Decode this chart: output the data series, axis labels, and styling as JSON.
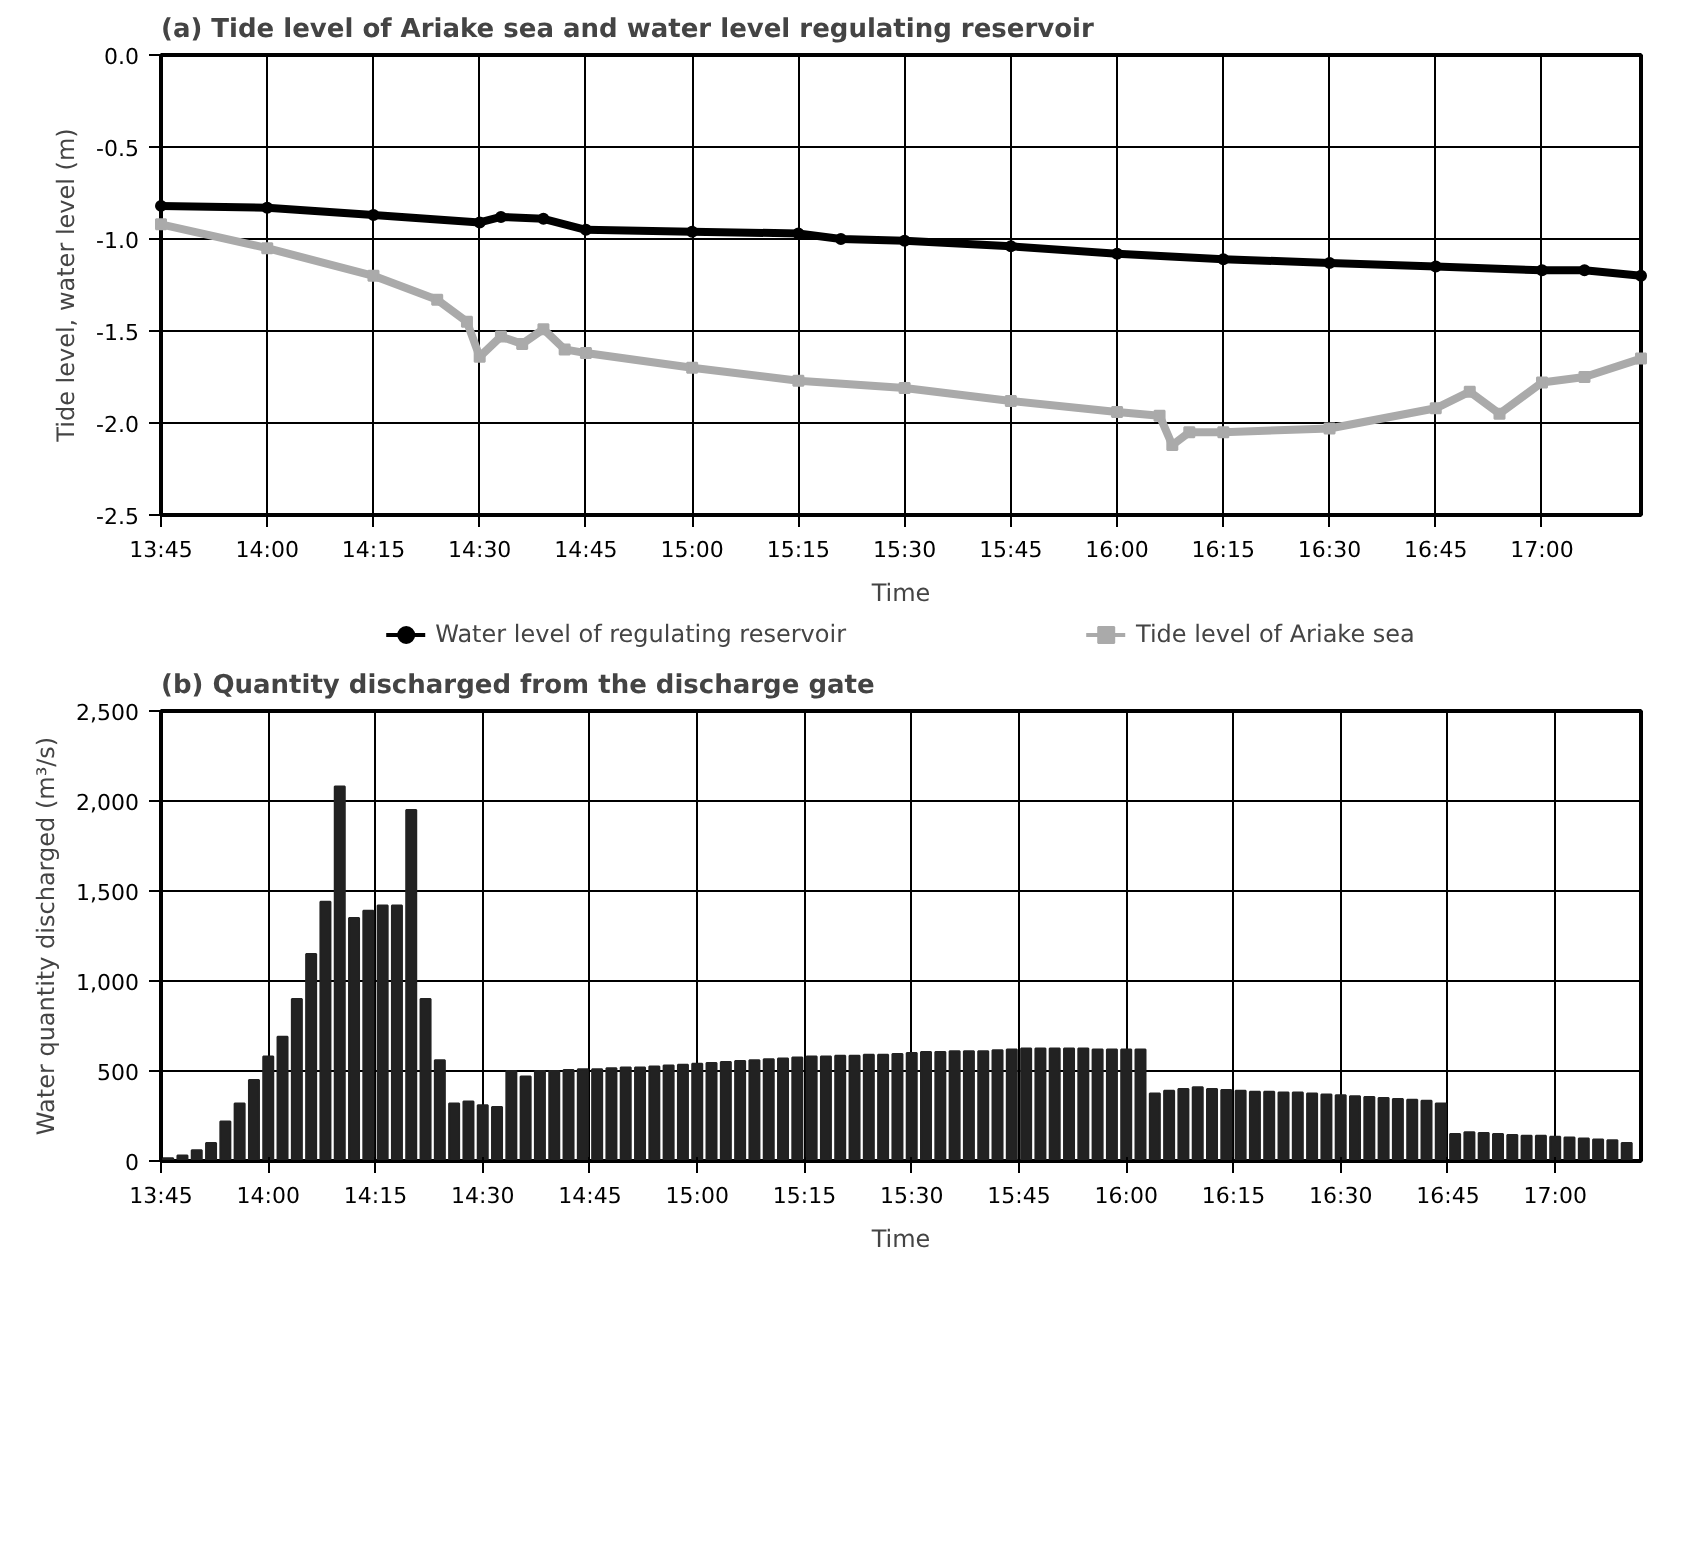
{
  "chart_data": [
    {
      "type": "line",
      "title": "(a) Tide level of Ariake sea and water level regulating reservoir",
      "xlabel": "Time",
      "ylabel": "Tide level, water level (m)",
      "xlim": [
        13.75,
        17.233
      ],
      "ylim": [
        -2.5,
        0.0
      ],
      "xticks": [
        {
          "value": 13.75,
          "label": "13:45"
        },
        {
          "value": 14.0,
          "label": "14:00"
        },
        {
          "value": 14.25,
          "label": "14:15"
        },
        {
          "value": 14.5,
          "label": "14:30"
        },
        {
          "value": 14.75,
          "label": "14:45"
        },
        {
          "value": 15.0,
          "label": "15:00"
        },
        {
          "value": 15.25,
          "label": "15:15"
        },
        {
          "value": 15.5,
          "label": "15:30"
        },
        {
          "value": 15.75,
          "label": "15:45"
        },
        {
          "value": 16.0,
          "label": "16:00"
        },
        {
          "value": 16.25,
          "label": "16:15"
        },
        {
          "value": 16.5,
          "label": "16:30"
        },
        {
          "value": 16.75,
          "label": "16:45"
        },
        {
          "value": 17.0,
          "label": "17:00"
        }
      ],
      "yticks": [
        {
          "value": 0.0,
          "label": "0.0"
        },
        {
          "value": -0.5,
          "label": "-0.5"
        },
        {
          "value": -1.0,
          "label": "-1.0"
        },
        {
          "value": -1.5,
          "label": "-1.5"
        },
        {
          "value": -2.0,
          "label": "-2.0"
        },
        {
          "value": -2.5,
          "label": "-2.5"
        }
      ],
      "grid": true,
      "legend": "bottom",
      "line_style": "solid",
      "series": [
        {
          "name": "Water level of regulating reservoir",
          "color": "#000000",
          "marker": "circle",
          "x": [
            13.75,
            14.0,
            14.25,
            14.5,
            14.55,
            14.65,
            14.75,
            15.0,
            15.25,
            15.35,
            15.5,
            15.75,
            16.0,
            16.25,
            16.5,
            16.75,
            17.0,
            17.1,
            17.233
          ],
          "values": [
            -0.82,
            -0.83,
            -0.87,
            -0.91,
            -0.88,
            -0.89,
            -0.95,
            -0.96,
            -0.97,
            -1.0,
            -1.01,
            -1.04,
            -1.08,
            -1.11,
            -1.13,
            -1.15,
            -1.17,
            -1.17,
            -1.2
          ]
        },
        {
          "name": "Tide level of Ariake sea",
          "color": "#aaaaaa",
          "marker": "square",
          "x": [
            13.75,
            14.0,
            14.25,
            14.4,
            14.47,
            14.5,
            14.55,
            14.6,
            14.65,
            14.7,
            14.75,
            15.0,
            15.25,
            15.5,
            15.75,
            16.0,
            16.1,
            16.13,
            16.17,
            16.25,
            16.5,
            16.75,
            16.83,
            16.9,
            17.0,
            17.1,
            17.233
          ],
          "values": [
            -0.92,
            -1.05,
            -1.2,
            -1.33,
            -1.45,
            -1.64,
            -1.53,
            -1.57,
            -1.49,
            -1.6,
            -1.62,
            -1.7,
            -1.77,
            -1.81,
            -1.88,
            -1.94,
            -1.96,
            -2.12,
            -2.05,
            -2.05,
            -2.03,
            -1.92,
            -1.83,
            -1.95,
            -1.78,
            -1.75,
            -1.65
          ]
        }
      ]
    },
    {
      "type": "bar",
      "title": "(b) Quantity discharged from the discharge gate",
      "xlabel": "Time",
      "ylabel": "Water quantity discharged (m³/s)",
      "xlim": [
        13.75,
        17.2
      ],
      "ylim": [
        0,
        2500
      ],
      "xticks": [
        {
          "value": 13.75,
          "label": "13:45"
        },
        {
          "value": 14.0,
          "label": "14:00"
        },
        {
          "value": 14.25,
          "label": "14:15"
        },
        {
          "value": 14.5,
          "label": "14:30"
        },
        {
          "value": 14.75,
          "label": "14:45"
        },
        {
          "value": 15.0,
          "label": "15:00"
        },
        {
          "value": 15.25,
          "label": "15:15"
        },
        {
          "value": 15.5,
          "label": "15:30"
        },
        {
          "value": 15.75,
          "label": "15:45"
        },
        {
          "value": 16.0,
          "label": "16:00"
        },
        {
          "value": 16.25,
          "label": "16:15"
        },
        {
          "value": 16.5,
          "label": "16:30"
        },
        {
          "value": 16.75,
          "label": "16:45"
        },
        {
          "value": 17.0,
          "label": "17:00"
        }
      ],
      "yticks": [
        0,
        500,
        {
          "value": 1000,
          "label": "1,000"
        },
        {
          "value": 1500,
          "label": "1,500"
        },
        {
          "value": 2000,
          "label": "2,000"
        },
        {
          "value": 2500,
          "label": "2,500"
        }
      ],
      "grid": true,
      "color": "#222222",
      "x": [
        13.7667,
        13.8,
        13.8333,
        13.8667,
        13.9,
        13.9333,
        13.9667,
        14.0,
        14.0333,
        14.0667,
        14.1,
        14.1333,
        14.1667,
        14.2,
        14.2333,
        14.2667,
        14.3,
        14.3333,
        14.3667,
        14.4,
        14.4333,
        14.4667,
        14.5,
        14.5333,
        14.5667,
        14.6,
        14.6333,
        14.6667,
        14.7,
        14.7333,
        14.7667,
        14.8,
        14.8333,
        14.8667,
        14.9,
        14.9333,
        14.9667,
        15.0,
        15.0333,
        15.0667,
        15.1,
        15.1333,
        15.1667,
        15.2,
        15.2333,
        15.2667,
        15.3,
        15.3333,
        15.3667,
        15.4,
        15.4333,
        15.4667,
        15.5,
        15.5333,
        15.5667,
        15.6,
        15.6333,
        15.6667,
        15.7,
        15.7333,
        15.7667,
        15.8,
        15.8333,
        15.8667,
        15.9,
        15.9333,
        15.9667,
        16.0,
        16.0333,
        16.0667,
        16.1,
        16.1333,
        16.1667,
        16.2,
        16.2333,
        16.2667,
        16.3,
        16.3333,
        16.3667,
        16.4,
        16.4333,
        16.4667,
        16.5,
        16.5333,
        16.5667,
        16.6,
        16.6333,
        16.6667,
        16.7,
        16.7333,
        16.7667,
        16.8,
        16.8333,
        16.8667,
        16.9,
        16.9333,
        16.9667,
        17.0,
        17.0333,
        17.0667,
        17.1,
        17.1333,
        17.1667
      ],
      "values": [
        15,
        30,
        60,
        100,
        220,
        320,
        450,
        580,
        690,
        900,
        1150,
        1440,
        2080,
        1350,
        1390,
        1420,
        1420,
        1950,
        900,
        560,
        320,
        330,
        310,
        300,
        500,
        470,
        500,
        500,
        505,
        510,
        510,
        515,
        520,
        520,
        525,
        530,
        535,
        540,
        545,
        550,
        555,
        560,
        565,
        570,
        575,
        580,
        580,
        585,
        585,
        590,
        590,
        595,
        600,
        605,
        605,
        610,
        610,
        610,
        615,
        620,
        625,
        625,
        625,
        625,
        625,
        620,
        620,
        620,
        620,
        375,
        390,
        400,
        410,
        400,
        395,
        390,
        385,
        385,
        380,
        380,
        375,
        370,
        365,
        360,
        355,
        350,
        345,
        340,
        335,
        320,
        150,
        160,
        155,
        150,
        145,
        140,
        140,
        135,
        130,
        125,
        120,
        115,
        100
      ]
    }
  ]
}
